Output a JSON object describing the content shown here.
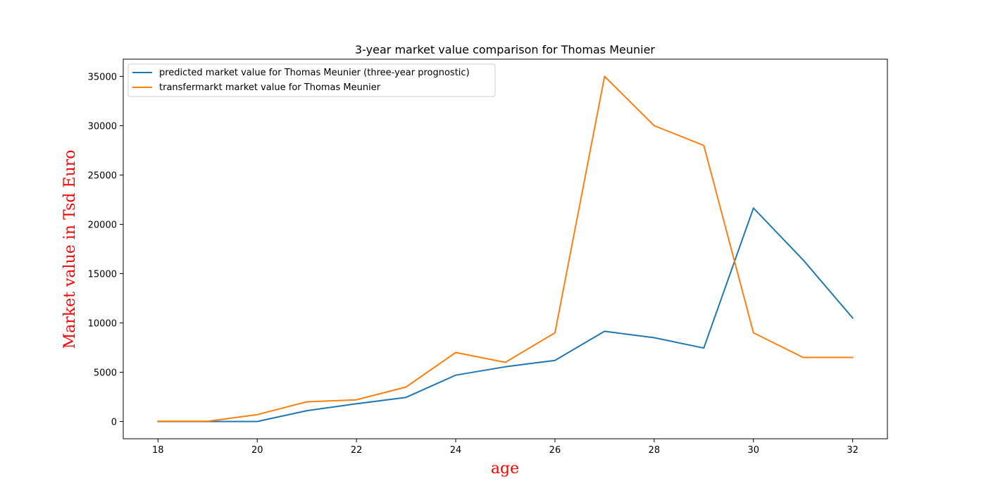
{
  "chart_data": {
    "type": "line",
    "title": "3-year market value comparison for Thomas Meunier",
    "xlabel": "age",
    "ylabel": "Market value in Tsd Euro",
    "label_color": "#ff0000",
    "x": [
      18,
      19,
      20,
      21,
      22,
      23,
      24,
      25,
      26,
      27,
      28,
      29,
      30,
      31,
      32
    ],
    "xlim": [
      17.3,
      32.7
    ],
    "ylim": [
      -1750,
      36750
    ],
    "x_ticks": [
      18,
      20,
      22,
      24,
      26,
      28,
      30,
      32
    ],
    "y_ticks": [
      0,
      5000,
      10000,
      15000,
      20000,
      25000,
      30000,
      35000
    ],
    "grid": false,
    "legend_position": "upper-left",
    "series": [
      {
        "name": "predicted market value for Thomas Meunier (three-year prognostic)",
        "color": "#1f77b4",
        "values": [
          0,
          0,
          0,
          1100,
          1800,
          2450,
          4700,
          5550,
          6200,
          9150,
          8500,
          7450,
          21650,
          16400,
          10500
        ]
      },
      {
        "name": "transfermarkt market value for Thomas Meunier",
        "color": "#ff7f0e",
        "values": [
          25,
          25,
          700,
          2000,
          2200,
          3500,
          7000,
          6000,
          9000,
          35000,
          30000,
          28000,
          9000,
          6500,
          6500
        ]
      }
    ]
  }
}
